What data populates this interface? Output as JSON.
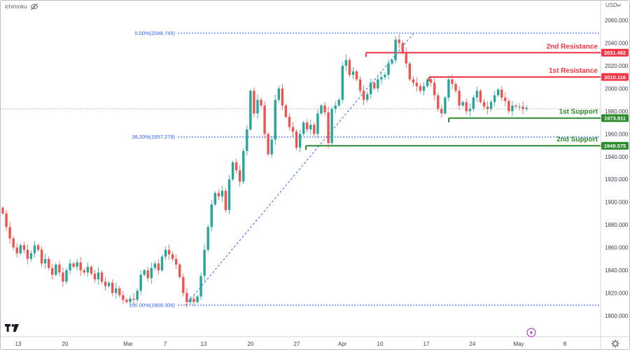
{
  "header": {
    "indicator_label": "ichimoku",
    "currency_selector": "USD",
    "colors": {
      "up": "#26a69a",
      "down": "#ef5350"
    }
  },
  "branding": {
    "logo": "tradingview-logo"
  },
  "footer": {
    "replay_icon": "lightning-icon",
    "settings_icon": "gear-icon"
  },
  "chart_data": {
    "type": "candlestick",
    "y_axis": {
      "ticks": [
        "2060.000",
        "2040.000",
        "2020.000",
        "2000.000",
        "1980.000",
        "1960.000",
        "1940.000",
        "1920.000",
        "1900.000",
        "1880.000",
        "1860.000",
        "1840.000",
        "1820.000",
        "1800.000"
      ],
      "range": [
        1790,
        2070
      ]
    },
    "x_axis": {
      "ticks": [
        "13",
        "20",
        "Mar",
        "7",
        "13",
        "20",
        "27",
        "Apr",
        "10",
        "17",
        "24",
        "May",
        "8"
      ]
    },
    "current_price": 1982,
    "fibonacci": {
      "levels": [
        {
          "label": "0.00%(2048.745)",
          "value": 2048.745
        },
        {
          "label": "38.20%(1957.279)",
          "value": 1957.279
        },
        {
          "label": "100.00%(1809.306)",
          "value": 1809.306
        }
      ],
      "line_color": "#2962ff"
    },
    "levels": [
      {
        "name": "2nd Resistance",
        "value": 2031.482,
        "badge": "2031.482",
        "color": "#f23645"
      },
      {
        "name": "1st Resistance",
        "value": 2010.116,
        "badge": "2010.116",
        "color": "#f23645"
      },
      {
        "name": "1st Support",
        "value": 1973.911,
        "badge": "1973.911",
        "color": "#2e8b2e"
      },
      {
        "name": "2nd Support",
        "value": 1949.575,
        "badge": "1949.575",
        "color": "#2e8b2e"
      }
    ],
    "closes": [
      1890,
      1878,
      1868,
      1860,
      1855,
      1862,
      1858,
      1850,
      1855,
      1862,
      1858,
      1846,
      1850,
      1842,
      1836,
      1845,
      1838,
      1830,
      1840,
      1846,
      1843,
      1847,
      1840,
      1838,
      1843,
      1837,
      1832,
      1838,
      1830,
      1826,
      1829,
      1820,
      1824,
      1818,
      1814,
      1812,
      1815,
      1814,
      1822,
      1836,
      1840,
      1833,
      1842,
      1846,
      1840,
      1852,
      1858,
      1854,
      1850,
      1845,
      1834,
      1820,
      1812,
      1815,
      1812,
      1817,
      1835,
      1858,
      1878,
      1898,
      1908,
      1905,
      1910,
      1893,
      1920,
      1935,
      1928,
      1918,
      1945,
      1964,
      1998,
      1978,
      1990,
      1985,
      1960,
      1942,
      1955,
      1990,
      2000,
      1985,
      1975,
      1966,
      1962,
      1948,
      1960,
      1970,
      1964,
      1968,
      1960,
      1978,
      1985,
      1979,
      1952,
      1982,
      1985,
      1990,
      2020,
      2025,
      2012,
      2015,
      2008,
      1998,
      1990,
      1995,
      2005,
      2000,
      2008,
      2010,
      2012,
      2022,
      2025,
      2043,
      2040,
      2032,
      2022,
      2008,
      2005,
      2002,
      1998,
      2002,
      2008,
      2005,
      1994,
      1982,
      1978,
      1992,
      2008,
      2004,
      1998,
      1985,
      1988,
      1980,
      1982,
      1992,
      1998,
      1988,
      1984,
      1982,
      1988,
      1994,
      1999,
      1992,
      1989,
      1980,
      1985,
      1984,
      1984,
      1982,
      1983
    ]
  }
}
